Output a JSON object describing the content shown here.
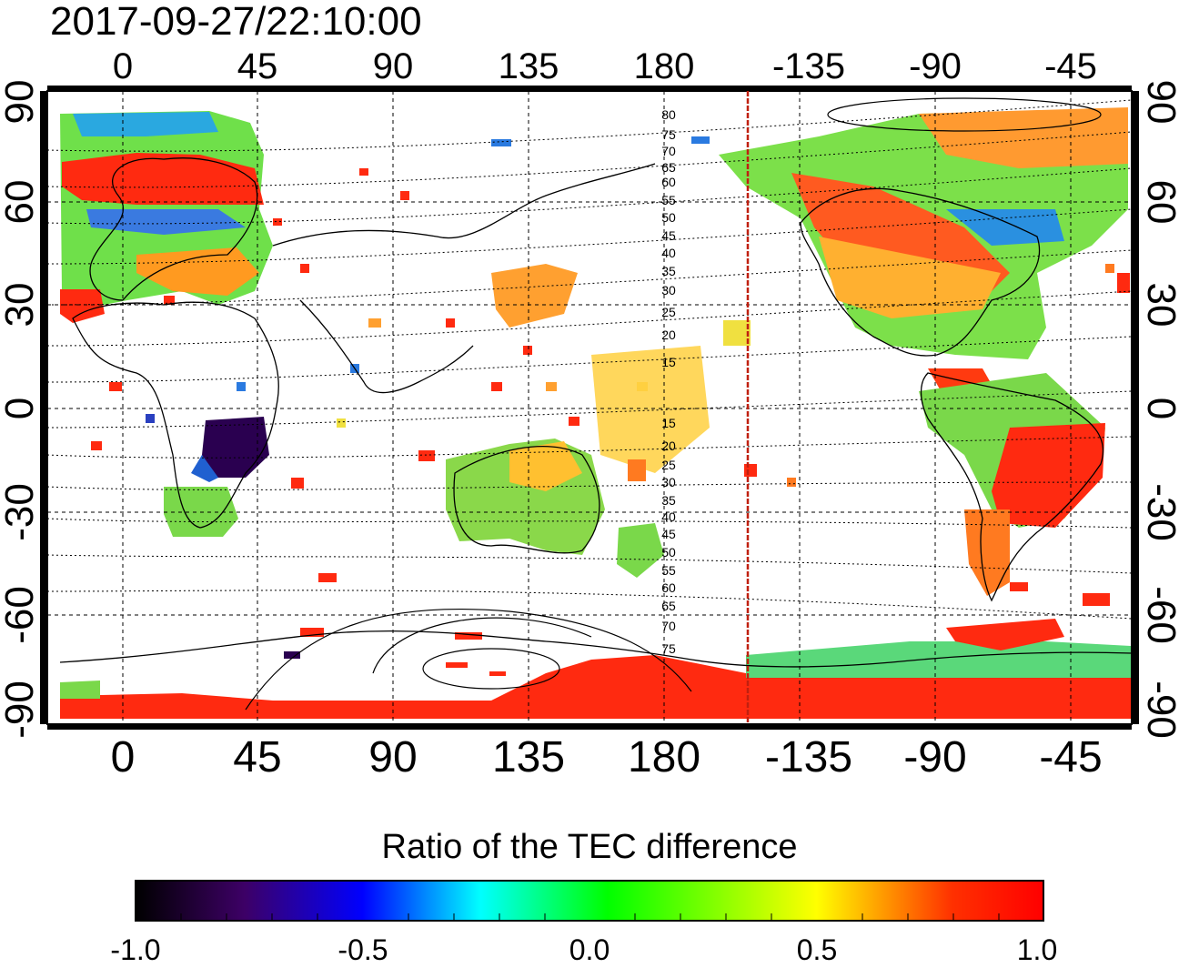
{
  "header": {
    "timestamp": "2017-09-27/22:10:00"
  },
  "map": {
    "projection": "equirectangular",
    "lon_range": [
      -20,
      340
    ],
    "lat_range": [
      -90,
      90
    ],
    "top_lon_labels": [
      "0",
      "45",
      "90",
      "135",
      "180",
      "-135",
      "-90",
      "-45"
    ],
    "bottom_lon_labels": [
      "0",
      "45",
      "90",
      "135",
      "180",
      "-135",
      "-90",
      "-45"
    ],
    "left_lat_labels": [
      "90",
      "60",
      "30",
      "0",
      "-30",
      "-60",
      "-90"
    ],
    "right_lat_labels": [
      "90",
      "60",
      "30",
      "0",
      "-30",
      "-60",
      "-90"
    ],
    "north_contour_labels": [
      "80",
      "75",
      "70",
      "65",
      "60",
      "55",
      "50",
      "45",
      "40",
      "35",
      "30",
      "25",
      "20",
      "15"
    ],
    "south_contour_labels": [
      "15",
      "20",
      "25",
      "30",
      "35",
      "40",
      "45",
      "50",
      "55",
      "60",
      "65",
      "70",
      "75"
    ],
    "terminator_longitude": -151
  },
  "colorbar": {
    "title": "Ratio of the TEC difference",
    "min": -1.0,
    "max": 1.0,
    "ticks": [
      "-1.0",
      "-0.5",
      "0.0",
      "0.5",
      "1.0"
    ],
    "stops": [
      "#000000",
      "#3d0066",
      "#0000ff",
      "#00ffff",
      "#00ff00",
      "#ffff00",
      "#ff0000"
    ]
  }
}
